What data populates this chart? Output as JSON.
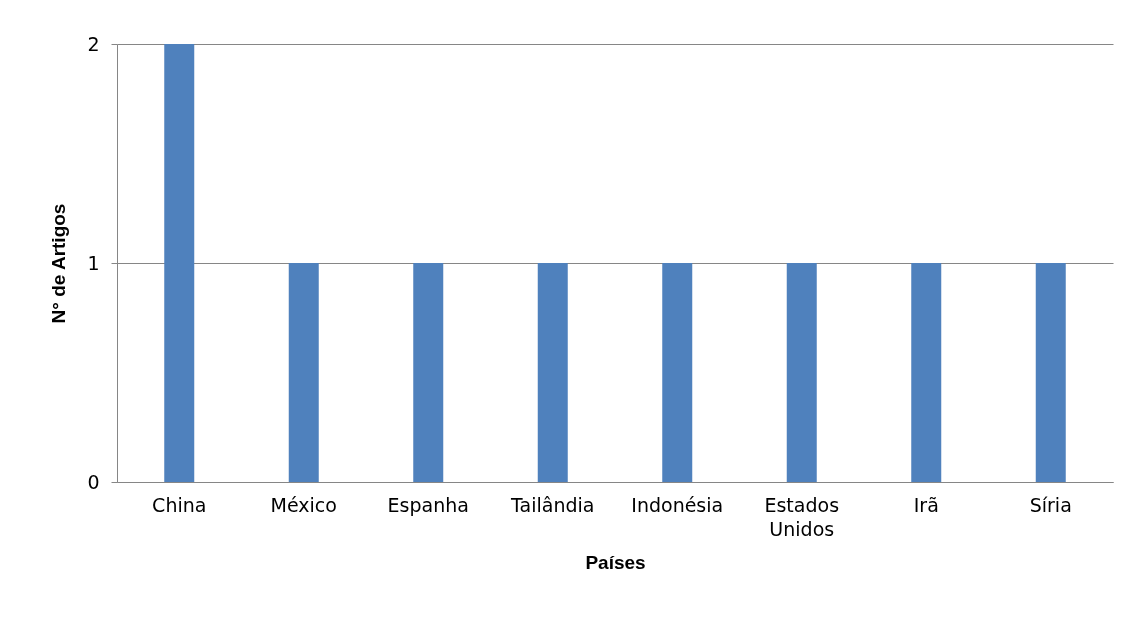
{
  "chart_data": {
    "type": "bar",
    "xlabel": "Países",
    "ylabel": "N° de Artigos",
    "categories": [
      "China",
      "México",
      "Espanha",
      "Tailândia",
      "Indonésia",
      "Estados Unidos",
      "Irã",
      "Síria"
    ],
    "values": [
      2,
      1,
      1,
      1,
      1,
      1,
      1,
      1
    ],
    "color": "#4f81bd",
    "ylim": [
      0,
      2
    ],
    "yticks": [
      0,
      1,
      2
    ],
    "grid": "y"
  }
}
